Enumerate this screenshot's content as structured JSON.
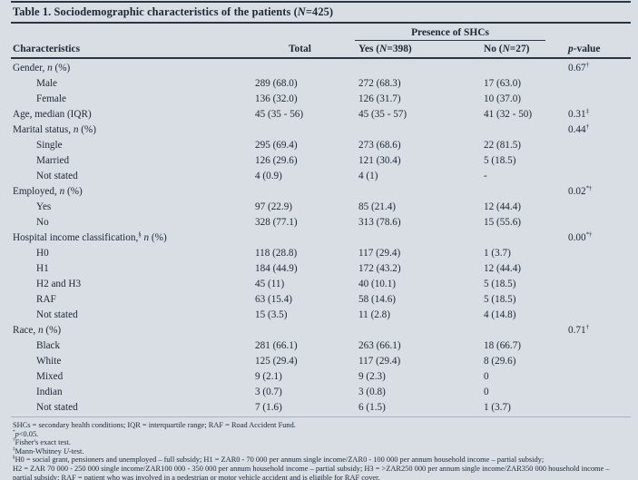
{
  "colors": {
    "background": "#d9dde4",
    "text": "#1d2834",
    "rule": "#2b3641"
  },
  "title": [
    {
      "t": "text",
      "v": "Table 1. Sociodemographic characteristics of the patients ("
    },
    {
      "t": "i",
      "v": "N"
    },
    {
      "t": "text",
      "v": "=425)"
    }
  ],
  "header": {
    "span_label": [
      {
        "t": "text",
        "v": "Presence of SHCs"
      }
    ],
    "characteristics": [
      {
        "t": "text",
        "v": "Characteristics"
      }
    ],
    "total": [
      {
        "t": "text",
        "v": "Total"
      }
    ],
    "yes": [
      {
        "t": "text",
        "v": "Yes ("
      },
      {
        "t": "i",
        "v": "N"
      },
      {
        "t": "text",
        "v": "=398)"
      }
    ],
    "no": [
      {
        "t": "text",
        "v": "No ("
      },
      {
        "t": "i",
        "v": "N"
      },
      {
        "t": "text",
        "v": "=27)"
      }
    ],
    "pvalue": [
      {
        "t": "i",
        "v": "p"
      },
      {
        "t": "text",
        "v": "-value"
      }
    ]
  },
  "rows": [
    {
      "indent": false,
      "label": [
        {
          "t": "text",
          "v": "Gender, "
        },
        {
          "t": "i",
          "v": "n"
        },
        {
          "t": "text",
          "v": " (%)"
        }
      ],
      "total": "",
      "yes": "",
      "no": "",
      "p": [
        {
          "t": "text",
          "v": "0.67"
        },
        {
          "t": "sup",
          "v": "†"
        }
      ]
    },
    {
      "indent": true,
      "label": [
        {
          "t": "text",
          "v": "Male"
        }
      ],
      "total": "289 (68.0)",
      "yes": "272 (68.3)",
      "no": "17 (63.0)",
      "p": []
    },
    {
      "indent": true,
      "label": [
        {
          "t": "text",
          "v": "Female"
        }
      ],
      "total": "136 (32.0)",
      "yes": "126 (31.7)",
      "no": "10 (37.0)",
      "p": []
    },
    {
      "indent": false,
      "label": [
        {
          "t": "text",
          "v": "Age, median (IQR)"
        }
      ],
      "total": "45 (35 - 56)",
      "yes": "45 (35 - 57)",
      "no": "41 (32 - 50)",
      "p": [
        {
          "t": "text",
          "v": "0.31"
        },
        {
          "t": "sup",
          "v": "‡"
        }
      ]
    },
    {
      "indent": false,
      "label": [
        {
          "t": "text",
          "v": "Marital status, "
        },
        {
          "t": "i",
          "v": "n"
        },
        {
          "t": "text",
          "v": " (%)"
        }
      ],
      "total": "",
      "yes": "",
      "no": "",
      "p": [
        {
          "t": "text",
          "v": "0.44"
        },
        {
          "t": "sup",
          "v": "†"
        }
      ]
    },
    {
      "indent": true,
      "label": [
        {
          "t": "text",
          "v": "Single"
        }
      ],
      "total": "295 (69.4)",
      "yes": "273 (68.6)",
      "no": "22 (81.5)",
      "p": []
    },
    {
      "indent": true,
      "label": [
        {
          "t": "text",
          "v": "Married"
        }
      ],
      "total": "126 (29.6)",
      "yes": "121 (30.4)",
      "no": "5 (18.5)",
      "p": []
    },
    {
      "indent": true,
      "label": [
        {
          "t": "text",
          "v": "Not stated"
        }
      ],
      "total": "4 (0.9)",
      "yes": "4 (1)",
      "no": "-",
      "p": []
    },
    {
      "indent": false,
      "label": [
        {
          "t": "text",
          "v": "Employed, "
        },
        {
          "t": "i",
          "v": "n"
        },
        {
          "t": "text",
          "v": " (%)"
        }
      ],
      "total": "",
      "yes": "",
      "no": "",
      "p": [
        {
          "t": "text",
          "v": "0.02"
        },
        {
          "t": "sup",
          "v": "*†"
        }
      ]
    },
    {
      "indent": true,
      "label": [
        {
          "t": "text",
          "v": "Yes"
        }
      ],
      "total": "97 (22.9)",
      "yes": "85 (21.4)",
      "no": "12 (44.4)",
      "p": []
    },
    {
      "indent": true,
      "label": [
        {
          "t": "text",
          "v": "No"
        }
      ],
      "total": "328 (77.1)",
      "yes": "313 (78.6)",
      "no": "15 (55.6)",
      "p": []
    },
    {
      "indent": false,
      "label": [
        {
          "t": "text",
          "v": "Hospital income classification,"
        },
        {
          "t": "sup",
          "v": "§"
        },
        {
          "t": "text",
          "v": " "
        },
        {
          "t": "i",
          "v": "n"
        },
        {
          "t": "text",
          "v": " (%)"
        }
      ],
      "total": "",
      "yes": "",
      "no": "",
      "p": [
        {
          "t": "text",
          "v": "0.00"
        },
        {
          "t": "sup",
          "v": "*†"
        }
      ]
    },
    {
      "indent": true,
      "label": [
        {
          "t": "text",
          "v": "H0"
        }
      ],
      "total": "118 (28.8)",
      "yes": "117 (29.4)",
      "no": "1 (3.7)",
      "p": []
    },
    {
      "indent": true,
      "label": [
        {
          "t": "text",
          "v": "H1"
        }
      ],
      "total": "184 (44.9)",
      "yes": "172 (43.2)",
      "no": "12 (44.4)",
      "p": []
    },
    {
      "indent": true,
      "label": [
        {
          "t": "text",
          "v": "H2 and H3"
        }
      ],
      "total": "45 (11)",
      "yes": "40 (10.1)",
      "no": "5 (18.5)",
      "p": []
    },
    {
      "indent": true,
      "label": [
        {
          "t": "text",
          "v": "RAF"
        }
      ],
      "total": "63 (15.4)",
      "yes": "58 (14.6)",
      "no": "5 (18.5)",
      "p": []
    },
    {
      "indent": true,
      "label": [
        {
          "t": "text",
          "v": "Not stated"
        }
      ],
      "total": "15 (3.5)",
      "yes": "11 (2.8)",
      "no": "4 (14.8)",
      "p": []
    },
    {
      "indent": false,
      "label": [
        {
          "t": "text",
          "v": "Race, "
        },
        {
          "t": "i",
          "v": "n"
        },
        {
          "t": "text",
          "v": " (%)"
        }
      ],
      "total": "",
      "yes": "",
      "no": "",
      "p": [
        {
          "t": "text",
          "v": "0.71"
        },
        {
          "t": "sup",
          "v": "†"
        }
      ]
    },
    {
      "indent": true,
      "label": [
        {
          "t": "text",
          "v": "Black"
        }
      ],
      "total": "281 (66.1)",
      "yes": "263 (66.1)",
      "no": "18 (66.7)",
      "p": []
    },
    {
      "indent": true,
      "label": [
        {
          "t": "text",
          "v": "White"
        }
      ],
      "total": "125 (29.4)",
      "yes": "117 (29.4)",
      "no": "8 (29.6)",
      "p": []
    },
    {
      "indent": true,
      "label": [
        {
          "t": "text",
          "v": "Mixed"
        }
      ],
      "total": "9 (2.1)",
      "yes": "9 (2.3)",
      "no": "0",
      "p": []
    },
    {
      "indent": true,
      "label": [
        {
          "t": "text",
          "v": "Indian"
        }
      ],
      "total": "3 (0.7)",
      "yes": "3 (0.8)",
      "no": "0",
      "p": []
    },
    {
      "indent": true,
      "label": [
        {
          "t": "text",
          "v": "Not stated"
        }
      ],
      "total": "7 (1.6)",
      "yes": "6 (1.5)",
      "no": "1 (3.7)",
      "p": []
    }
  ],
  "footnotes": [
    [
      {
        "t": "text",
        "v": "SHCs = secondary health conditions; IQR = interquartile range; RAF = Road Accident Fund."
      }
    ],
    [
      {
        "t": "sup",
        "v": "*"
      },
      {
        "t": "i",
        "v": "p"
      },
      {
        "t": "text",
        "v": "<0.05."
      }
    ],
    [
      {
        "t": "sup",
        "v": "†"
      },
      {
        "t": "text",
        "v": "Fisher's exact test."
      }
    ],
    [
      {
        "t": "sup",
        "v": "‡"
      },
      {
        "t": "text",
        "v": "Mann-Whitney "
      },
      {
        "t": "i",
        "v": "U"
      },
      {
        "t": "text",
        "v": "-test."
      }
    ],
    [
      {
        "t": "sup",
        "v": "§"
      },
      {
        "t": "text",
        "v": "H0 = social grant, pensioners and unemployed – full subsidy; H1 = ZAR0 - 70 000 per annum single income/ZAR0 - 100 000 per annum household income – partial subsidy;"
      }
    ],
    [
      {
        "t": "text",
        "v": "H2 = ZAR 70 000 - 250 000 single income/ZAR100 000 - 350 000 per annum household income – partial subsidy; H3 = >ZAR250 000 per annum single income/ZAR350 000 household income –"
      }
    ],
    [
      {
        "t": "text",
        "v": "partial subsidy; RAF = patient who was involved in a pedestrian or motor vehicle accident and is eligible for RAF cover."
      }
    ]
  ]
}
